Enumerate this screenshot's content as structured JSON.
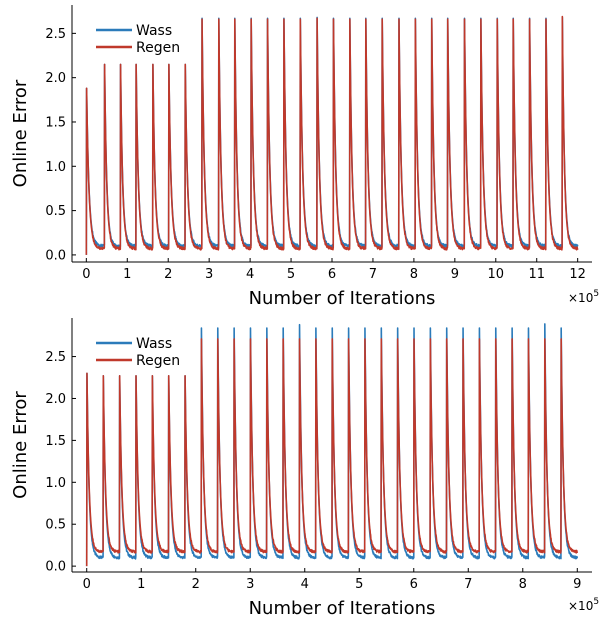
{
  "chart_data": [
    {
      "type": "line",
      "xlabel": "Number of Iterations",
      "ylabel": "Online Error",
      "x_multiplier": "×10",
      "x_multiplier_exp": "5",
      "xlim": [
        -0.35,
        12.35
      ],
      "ylim": [
        -0.08,
        2.82
      ],
      "xticks": [
        0,
        1,
        2,
        3,
        4,
        5,
        6,
        7,
        8,
        9,
        10,
        11,
        12
      ],
      "yticks": [
        0.0,
        0.5,
        1.0,
        1.5,
        2.0,
        2.5
      ],
      "ytick_labels": [
        "0.0",
        "0.5",
        "1.0",
        "1.5",
        "2.0",
        "2.5"
      ],
      "grid": false,
      "legend_position": "top-left",
      "series": [
        {
          "name": "Wass",
          "color": "#2b7bba",
          "task_starts": [
            0,
            0.44,
            0.83,
            1.21,
            1.62,
            2.01,
            2.41,
            2.82,
            3.23,
            3.62,
            4.02,
            4.42,
            4.82,
            5.22,
            5.63,
            6.03,
            6.43,
            6.82,
            7.22,
            7.63,
            8.03,
            8.43,
            8.82,
            9.23,
            9.63,
            10.03,
            10.42,
            10.82,
            11.22,
            11.62
          ],
          "peaks": [
            1.88,
            2.15,
            2.15,
            2.15,
            2.15,
            2.15,
            2.15,
            2.67,
            2.67,
            2.67,
            2.67,
            2.67,
            2.67,
            2.67,
            2.68,
            2.67,
            2.67,
            2.67,
            2.67,
            2.67,
            2.67,
            2.67,
            2.67,
            2.67,
            2.67,
            2.67,
            2.67,
            2.67,
            2.67,
            2.68
          ],
          "floor": 0.1,
          "end": 12.0
        },
        {
          "name": "Regen",
          "color": "#c0392b",
          "task_starts": [
            0,
            0.44,
            0.83,
            1.21,
            1.62,
            2.01,
            2.41,
            2.82,
            3.23,
            3.62,
            4.02,
            4.42,
            4.82,
            5.22,
            5.63,
            6.03,
            6.43,
            6.82,
            7.22,
            7.63,
            8.03,
            8.43,
            8.82,
            9.23,
            9.63,
            10.03,
            10.42,
            10.82,
            11.22,
            11.62
          ],
          "peaks": [
            1.88,
            2.15,
            2.15,
            2.15,
            2.15,
            2.15,
            2.15,
            2.66,
            2.66,
            2.66,
            2.66,
            2.66,
            2.66,
            2.66,
            2.67,
            2.66,
            2.66,
            2.66,
            2.66,
            2.66,
            2.66,
            2.66,
            2.66,
            2.66,
            2.66,
            2.66,
            2.66,
            2.66,
            2.66,
            2.69
          ],
          "floor": 0.07,
          "end": 12.0
        }
      ]
    },
    {
      "type": "line",
      "xlabel": "Number of Iterations",
      "ylabel": "Online Error",
      "x_multiplier": "×10",
      "x_multiplier_exp": "5",
      "xlim": [
        -0.27,
        9.27
      ],
      "ylim": [
        -0.07,
        2.96
      ],
      "xticks": [
        0,
        1,
        2,
        3,
        4,
        5,
        6,
        7,
        8,
        9
      ],
      "yticks": [
        0.0,
        0.5,
        1.0,
        1.5,
        2.0,
        2.5
      ],
      "ytick_labels": [
        "0.0",
        "0.5",
        "1.0",
        "1.5",
        "2.0",
        "2.5"
      ],
      "grid": false,
      "legend_position": "top-left",
      "series": [
        {
          "name": "Wass",
          "color": "#2b7bba",
          "task_starts": [
            0,
            0.3,
            0.6,
            0.9,
            1.2,
            1.5,
            1.8,
            2.1,
            2.4,
            2.7,
            3.0,
            3.3,
            3.6,
            3.9,
            4.2,
            4.5,
            4.8,
            5.1,
            5.4,
            5.7,
            6.0,
            6.3,
            6.6,
            6.9,
            7.2,
            7.5,
            7.8,
            8.1,
            8.4,
            8.7
          ],
          "peaks": [
            2.3,
            2.27,
            2.27,
            2.27,
            2.27,
            2.27,
            2.27,
            2.84,
            2.84,
            2.84,
            2.84,
            2.84,
            2.84,
            2.88,
            2.84,
            2.84,
            2.84,
            2.84,
            2.84,
            2.84,
            2.84,
            2.84,
            2.84,
            2.84,
            2.84,
            2.84,
            2.84,
            2.84,
            2.89,
            2.84
          ],
          "floor": 0.1,
          "end": 9.0
        },
        {
          "name": "Regen",
          "color": "#c0392b",
          "task_starts": [
            0,
            0.3,
            0.6,
            0.9,
            1.2,
            1.5,
            1.8,
            2.1,
            2.4,
            2.7,
            3.0,
            3.3,
            3.6,
            3.9,
            4.2,
            4.5,
            4.8,
            5.1,
            5.4,
            5.7,
            6.0,
            6.3,
            6.6,
            6.9,
            7.2,
            7.5,
            7.8,
            8.1,
            8.4,
            8.7
          ],
          "peaks": [
            2.3,
            2.27,
            2.27,
            2.27,
            2.27,
            2.27,
            2.27,
            2.71,
            2.71,
            2.71,
            2.71,
            2.71,
            2.71,
            2.71,
            2.71,
            2.71,
            2.71,
            2.71,
            2.71,
            2.71,
            2.71,
            2.71,
            2.71,
            2.71,
            2.71,
            2.71,
            2.71,
            2.71,
            2.71,
            2.71
          ],
          "floor": 0.17,
          "end": 9.0
        }
      ]
    }
  ]
}
